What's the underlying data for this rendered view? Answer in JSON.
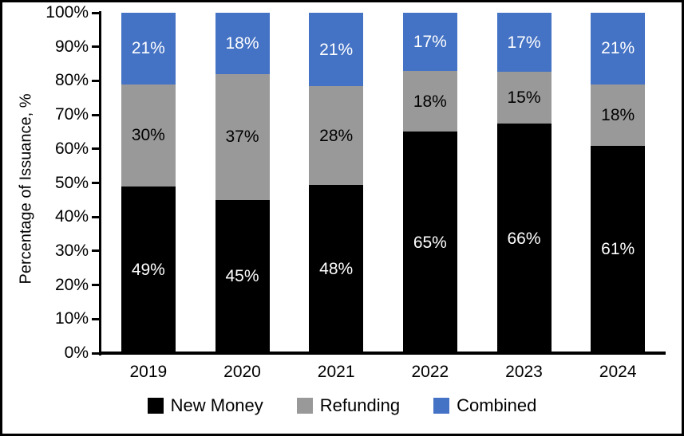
{
  "chart_data": {
    "type": "bar",
    "subtype": "stacked-100-percent",
    "categories": [
      "2019",
      "2020",
      "2021",
      "2022",
      "2023",
      "2024"
    ],
    "series": [
      {
        "name": "New Money",
        "color": "#000000",
        "label_color": "#ffffff",
        "values": [
          49,
          45,
          48,
          65,
          66,
          61
        ]
      },
      {
        "name": "Refunding",
        "color": "#999999",
        "label_color": "#000000",
        "values": [
          30,
          37,
          28,
          18,
          15,
          18
        ]
      },
      {
        "name": "Combined",
        "color": "#4472C4",
        "label_color": "#ffffff",
        "values": [
          21,
          18,
          21,
          17,
          17,
          21
        ]
      }
    ],
    "title": "",
    "xlabel": "",
    "ylabel": "Percentage of Issuance, %",
    "ylim": [
      0,
      100
    ],
    "y_ticks": [
      "0%",
      "10%",
      "20%",
      "30%",
      "40%",
      "50%",
      "60%",
      "70%",
      "80%",
      "90%",
      "100%"
    ],
    "value_suffix": "%",
    "grid": false,
    "legend_position": "bottom"
  }
}
